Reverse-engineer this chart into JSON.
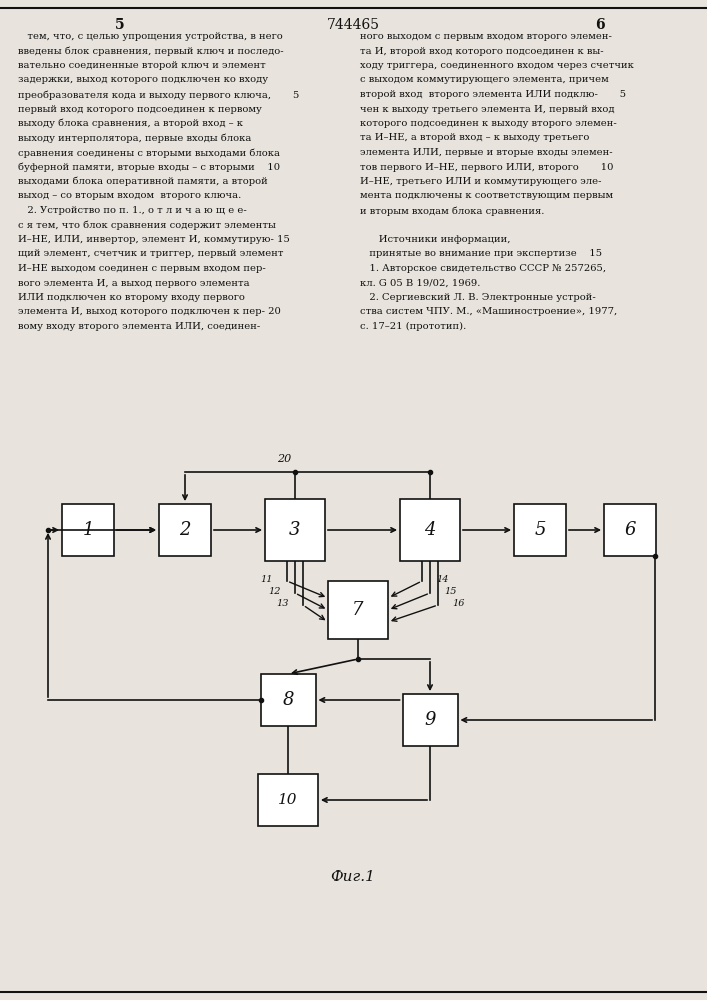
{
  "bg_color": "#e8e4dd",
  "text_color": "#111111",
  "fig_title": "Фиг.1",
  "page_left_num": "5",
  "page_center_num": "744465",
  "page_right_num": "6",
  "left_col_text": [
    "   тем, что, с целью упрощения устройства, в него",
    "введены блок сравнения, первый ключ и последо-",
    "вательно соединенные второй ключ и элемент",
    "задержки, выход которого подключен ко входу",
    "преобразователя кода и выходу первого ключа,       5",
    "первый вход которого подсоединен к первому",
    "выходу блока сравнения, а второй вход – к",
    "выходу интерполятора, первые входы блока",
    "сравнения соединены с вторыми выходами блока",
    "буферной памяти, вторые входы – с вторыми    10",
    "выходами блока оперативной памяти, а второй",
    "выход – со вторым входом  второго ключа.",
    "   2. Устройство по п. 1., о т л и ч а ю щ е е-",
    "с я тем, что блок сравнения содержит элементы",
    "И–НЕ, ИЛИ, инвертор, элемент И, коммутирую- 15",
    "щий элемент, счетчик и триггер, первый элемент",
    "И–НЕ выходом соединен с первым входом пер-",
    "вого элемента И, а выход первого элемента",
    "ИЛИ подключен ко второму входу первого",
    "элемента И, выход которого подключен к пер- 20",
    "вому входу второго элемента ИЛИ, соединен-"
  ],
  "right_col_text": [
    "ного выходом с первым входом второго элемен-",
    "та И, второй вход которого подсоединен к вы-",
    "ходу триггера, соединенного входом через счетчик",
    "с выходом коммутирующего элемента, причем",
    "второй вход  второго элемента ИЛИ подклю-       5",
    "чен к выходу третьего элемента И, первый вход",
    "которого подсоединен к выходу второго элемен-",
    "та И–НЕ, а второй вход – к выходу третьего",
    "элемента ИЛИ, первые и вторые входы элемен-",
    "тов первого И–НЕ, первого ИЛИ, второго       10",
    "И–НЕ, третьего ИЛИ и коммутирующего эле-",
    "мента подключены к соответствующим первым",
    "и вторым входам блока сравнения.",
    "",
    "      Источники информации,",
    "   принятые во внимание при экспертизе    15",
    "   1. Авторское свидетельство СССР № 257265,",
    "кл. G 05 B 19/02, 1969.",
    "   2. Сергиевский Л. В. Электронные устрой-",
    "ства систем ЧПУ. М., «Машиностроение», 1977,",
    "с. 17–21 (прототип)."
  ]
}
